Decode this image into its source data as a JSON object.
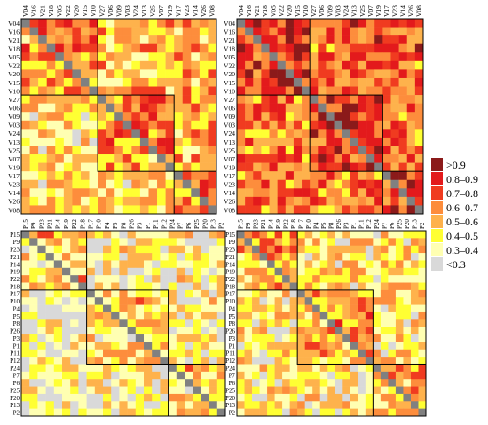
{
  "chart_data": [
    {
      "type": "heatmap",
      "name": "panel-top-left",
      "labels": [
        "V04",
        "V16",
        "V21",
        "V18",
        "V05",
        "V22",
        "V20",
        "V15",
        "V10",
        "V27",
        "V06",
        "V09",
        "V03",
        "V24",
        "V13",
        "V25",
        "V07",
        "V19",
        "V17",
        "V23",
        "V14",
        "V26",
        "V08"
      ],
      "blocks": [
        [
          0,
          8
        ],
        [
          9,
          17
        ],
        [
          18,
          22
        ]
      ],
      "lower_triangle_mean_level": 2.3,
      "upper_triangle_mean_level": 3.1
    },
    {
      "type": "heatmap",
      "name": "panel-top-right",
      "labels": [
        "V04",
        "V16",
        "V21",
        "V18",
        "V05",
        "V22",
        "V20",
        "V15",
        "V10",
        "V27",
        "V06",
        "V09",
        "V03",
        "V24",
        "V13",
        "V25",
        "V07",
        "V19",
        "V17",
        "V23",
        "V14",
        "V26",
        "V08"
      ],
      "blocks": [
        [
          0,
          8
        ],
        [
          9,
          17
        ],
        [
          18,
          22
        ]
      ],
      "lower_triangle_mean_level": 4.0,
      "upper_triangle_mean_level": 4.5
    },
    {
      "type": "heatmap",
      "name": "panel-bottom-left",
      "labels": [
        "P15",
        "P9",
        "P23",
        "P21",
        "P14",
        "P19",
        "P22",
        "P18",
        "P17",
        "P10",
        "P4",
        "P5",
        "P8",
        "P26",
        "P3",
        "P1",
        "P11",
        "P12",
        "P24",
        "P7",
        "P6",
        "P25",
        "P20",
        "P13",
        "P2"
      ],
      "blocks": [
        [
          0,
          7
        ],
        [
          8,
          17
        ],
        [
          18,
          24
        ]
      ],
      "lower_triangle_mean_level": 1.2,
      "upper_triangle_mean_level": 1.5
    },
    {
      "type": "heatmap",
      "name": "panel-bottom-right",
      "labels": [
        "P15",
        "P9",
        "P23",
        "P21",
        "P14",
        "P19",
        "P22",
        "P18",
        "P17",
        "P10",
        "P4",
        "P5",
        "P8",
        "P26",
        "P3",
        "P1",
        "P11",
        "P12",
        "P24",
        "P7",
        "P6",
        "P25",
        "P20",
        "P13",
        "P2"
      ],
      "blocks": [
        [
          0,
          7
        ],
        [
          8,
          17
        ],
        [
          18,
          24
        ]
      ],
      "lower_triangle_mean_level": 1.8,
      "upper_triangle_mean_level": 2.3
    }
  ],
  "legend": {
    "items": [
      {
        "label": ">0.9",
        "color": "#8b1a1a"
      },
      {
        "label": "0.8–0.9",
        "color": "#e31a1c"
      },
      {
        "label": "0.7–0.8",
        "color": "#f03b20"
      },
      {
        "label": "0.6–0.7",
        "color": "#fd8d3c"
      },
      {
        "label": "0.5–0.6",
        "color": "#feb24c"
      },
      {
        "label": "0.4–0.5",
        "color": "#ffff33"
      },
      {
        "label": "0.3–0.4",
        "color": "#ffffb2"
      },
      {
        "label": "<0.3",
        "color": "#d9d9d9"
      }
    ]
  },
  "colors": {
    "diagonal": "#808080",
    "block_border": "#000000"
  }
}
